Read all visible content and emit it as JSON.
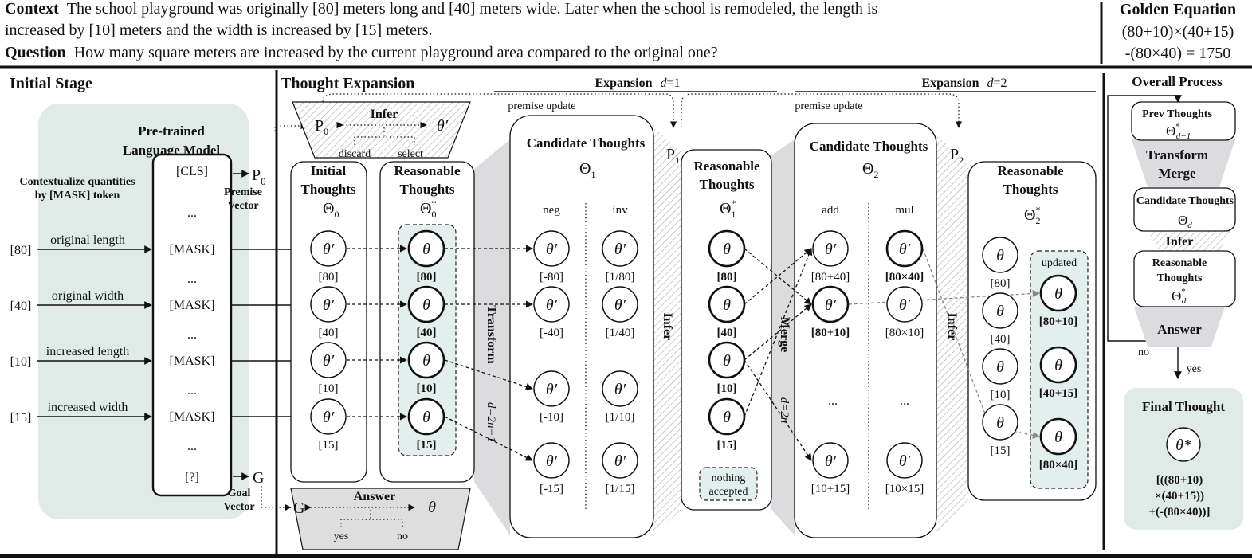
{
  "header": {
    "context_label": "Context",
    "context_line1": "The school playground was originally [80] meters long and [40] meters wide. Later when the school is remodeled, the length is",
    "context_line2": "increased by [10] meters and the width is increased by [15] meters.",
    "question_label": "Question",
    "question_text": "How many square meters are increased by the current playground area compared to the original one?",
    "golden_title": "Golden Equation",
    "golden_line1": "(80+10)×(40+15)",
    "golden_line2": "-(80×40) = 1750"
  },
  "initial_stage": {
    "title": "Initial Stage",
    "plm_title1": "Pre-trained",
    "plm_title2": "Language Model",
    "contextualize1": "Contextualize quantities",
    "contextualize2": "by [MASK] token",
    "tokens": [
      "[CLS]",
      "...",
      "[MASK]",
      "...",
      "[MASK]",
      "...",
      "[MASK]",
      "...",
      "[MASK]",
      "...",
      "[?]"
    ],
    "inputs": [
      {
        "value": "[80]",
        "label": "original length"
      },
      {
        "value": "[40]",
        "label": "original width"
      },
      {
        "value": "[10]",
        "label": "increased length"
      },
      {
        "value": "[15]",
        "label": "increased width"
      }
    ],
    "premise_symbol": "P",
    "premise_sub": "0",
    "premise_label1": "Premise",
    "premise_label2": "Vector",
    "goal_symbol": "G",
    "goal_label1": "Goal",
    "goal_label2": "Vector"
  },
  "thought_expansion": {
    "title": "Thought Expansion",
    "expansion1": {
      "label": "Expansion",
      "var": "d",
      "value": "=1"
    },
    "expansion2": {
      "label": "Expansion",
      "var": "d",
      "value": "=2"
    },
    "premise_update": "premise update",
    "infer_box": {
      "p": "P",
      "p_sub": "0",
      "label": "Infer",
      "theta": "θ′",
      "discard": "discard",
      "select": "select"
    },
    "answer_box": {
      "g": "G",
      "label": "Answer",
      "theta": "θ",
      "yes": "yes",
      "no": "no"
    },
    "initial_thoughts": {
      "title1": "Initial",
      "title2": "Thoughts",
      "sym": "Θ",
      "sub": "0",
      "sup": "",
      "items": [
        {
          "s": "θ′",
          "l": "[80]"
        },
        {
          "s": "θ′",
          "l": "[40]"
        },
        {
          "s": "θ′",
          "l": "[10]"
        },
        {
          "s": "θ′",
          "l": "[15]"
        }
      ]
    },
    "reasonable0": {
      "title1": "Reasonable",
      "title2": "Thoughts",
      "sym": "Θ",
      "sub": "0",
      "sup": "*",
      "items": [
        {
          "s": "θ",
          "l": "[80]"
        },
        {
          "s": "θ",
          "l": "[40]"
        },
        {
          "s": "θ",
          "l": "[10]"
        },
        {
          "s": "θ",
          "l": "[15]"
        }
      ]
    },
    "transform": {
      "label": "Transform",
      "formula": "d=2n−1"
    },
    "candidate1": {
      "title": "Candidate Thoughts",
      "sym": "Θ",
      "sub": "1",
      "col1": "neg",
      "col2": "inv",
      "neg": [
        {
          "s": "θ′",
          "l": "[-80]"
        },
        {
          "s": "θ′",
          "l": "[-40]"
        },
        {
          "s": "θ′",
          "l": "[-10]"
        },
        {
          "s": "θ′",
          "l": "[-15]"
        }
      ],
      "inv": [
        {
          "s": "θ′",
          "l": "[1/80]"
        },
        {
          "s": "θ′",
          "l": "[1/40]"
        },
        {
          "s": "θ′",
          "l": "[1/10]"
        },
        {
          "s": "θ′",
          "l": "[1/15]"
        }
      ]
    },
    "p1": {
      "p": "P",
      "sub": "1"
    },
    "infer1": "Infer",
    "reasonable1": {
      "title1": "Reasonable",
      "title2": "Thoughts",
      "sym": "Θ",
      "sub": "1",
      "sup": "*",
      "items": [
        {
          "s": "θ",
          "l": "[80]"
        },
        {
          "s": "θ",
          "l": "[40]"
        },
        {
          "s": "θ",
          "l": "[10]"
        },
        {
          "s": "θ",
          "l": "[15]"
        }
      ],
      "note1": "nothing",
      "note2": "accepted"
    },
    "merge": {
      "label": "Merge",
      "formula": "d=2n"
    },
    "candidate2": {
      "title": "Candidate Thoughts",
      "sym": "Θ",
      "sub": "2",
      "col1": "add",
      "col2": "mul",
      "ellipsis": "...",
      "add": [
        {
          "s": "θ′",
          "l": "[80+40]"
        },
        {
          "s": "θ′",
          "l": "[80+10]"
        },
        {
          "s": "θ′",
          "l": "[10+15]"
        }
      ],
      "mul": [
        {
          "s": "θ′",
          "l": "[80×40]"
        },
        {
          "s": "θ′",
          "l": "[80×10]"
        },
        {
          "s": "θ′",
          "l": "[10×15]"
        }
      ]
    },
    "p2": {
      "p": "P",
      "sub": "2"
    },
    "infer2": "Infer",
    "reasonable2": {
      "title1": "Reasonable",
      "title2": "Thoughts",
      "sym": "Θ",
      "sub": "2",
      "sup": "*",
      "items": [
        {
          "s": "θ",
          "l": "[80]"
        },
        {
          "s": "θ",
          "l": "[40]"
        },
        {
          "s": "θ",
          "l": "[10]"
        },
        {
          "s": "θ",
          "l": "[15]"
        }
      ],
      "updated_label": "updated",
      "updated": [
        {
          "s": "θ",
          "l": "[80+10]"
        },
        {
          "s": "θ",
          "l": "[40+15]"
        },
        {
          "s": "θ",
          "l": "[80×40]"
        }
      ]
    }
  },
  "overall_process": {
    "title": "Overall Process",
    "prev_title": "Prev Thoughts",
    "prev_sym": "Θ",
    "prev_sub": "d−1",
    "prev_sup": "*",
    "transform1": "Transform",
    "transform2": "Merge",
    "candidate_title": "Candidate Thoughts",
    "candidate_sym": "Θ",
    "candidate_sub": "d",
    "infer": "Infer",
    "reasonable1": "Reasonable",
    "reasonable2": "Thoughts",
    "reasonable_sym": "Θ",
    "reasonable_sub": "d",
    "reasonable_sup": "*",
    "answer": "Answer",
    "no": "no",
    "yes": "yes",
    "final_title": "Final Thought",
    "final_theta": "θ*",
    "final_line1": "[((80+10)",
    "final_line2": "×(40+15))",
    "final_line3": "+(-(80×40))]"
  },
  "colors": {
    "teal_panel": "#e0ebe8",
    "gray_band": "#dcdcdf"
  }
}
